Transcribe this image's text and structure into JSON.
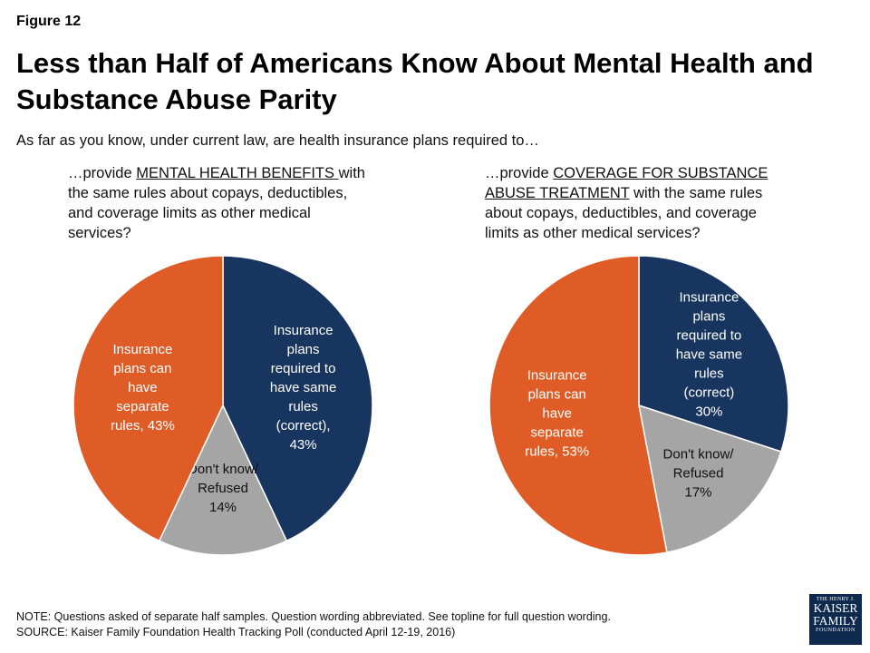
{
  "figure_label": "Figure 12",
  "title": "Less than Half of Americans Know About Mental Health and Substance Abuse Parity",
  "subtitle": "As far as you know, under current law, are health insurance plans required to…",
  "questions": [
    {
      "pre": "…provide ",
      "underline": "MENTAL HEALTH BENEFITS ",
      "post": "with the same rules about copays, deductibles, and coverage limits as other medical services?"
    },
    {
      "pre": "…provide ",
      "underline": "COVERAGE FOR SUBSTANCE ABUSE TREATMENT",
      "post": " with the same rules about copays, deductibles, and coverage limits as other medical services?"
    }
  ],
  "colors": {
    "navy": "#17355e",
    "orange": "#e05c26",
    "gray": "#a5a5a5"
  },
  "chart_data": [
    {
      "type": "pie",
      "slices": [
        {
          "label": "Insurance plans required to have same rules (correct), 43%",
          "value": 43,
          "color": "#17355e",
          "label_lines": [
            "Insurance",
            "plans",
            "required to",
            "have same",
            "rules",
            "(correct),",
            "43%"
          ],
          "text_color": "#ffffff"
        },
        {
          "label": "Don't know/ Refused 14%",
          "value": 14,
          "color": "#a5a5a5",
          "label_lines": [
            "Don't know/",
            "Refused",
            "14%"
          ],
          "text_color": "#111111"
        },
        {
          "label": "Insurance plans can have separate rules, 43%",
          "value": 43,
          "color": "#e05c26",
          "label_lines": [
            "Insurance",
            "plans can",
            "have",
            "separate",
            "rules, 43%"
          ],
          "text_color": "#ffffff"
        }
      ]
    },
    {
      "type": "pie",
      "slices": [
        {
          "label": "Insurance plans required to have same rules (correct) 30%",
          "value": 30,
          "color": "#17355e",
          "label_lines": [
            "Insurance",
            "plans",
            "required to",
            "have same",
            "rules",
            "(correct)",
            "30%"
          ],
          "text_color": "#ffffff"
        },
        {
          "label": "Don't know/ Refused 17%",
          "value": 17,
          "color": "#a5a5a5",
          "label_lines": [
            "Don't know/",
            "Refused",
            "17%"
          ],
          "text_color": "#111111"
        },
        {
          "label": "Insurance plans can have separate rules, 53%",
          "value": 53,
          "color": "#e05c26",
          "label_lines": [
            "Insurance",
            "plans can",
            "have",
            "separate",
            "rules, 53%"
          ],
          "text_color": "#ffffff"
        }
      ]
    }
  ],
  "notes": {
    "note": "NOTE: Questions asked of separate half samples. Question wording abbreviated. See topline for full question wording.",
    "source": "SOURCE: Kaiser Family Foundation Health Tracking Poll (conducted April 12-19, 2016)"
  },
  "logo": {
    "line1": "THE HENRY J.",
    "line2": "KAISER",
    "line3": "FAMILY",
    "line4": "FOUNDATION"
  }
}
